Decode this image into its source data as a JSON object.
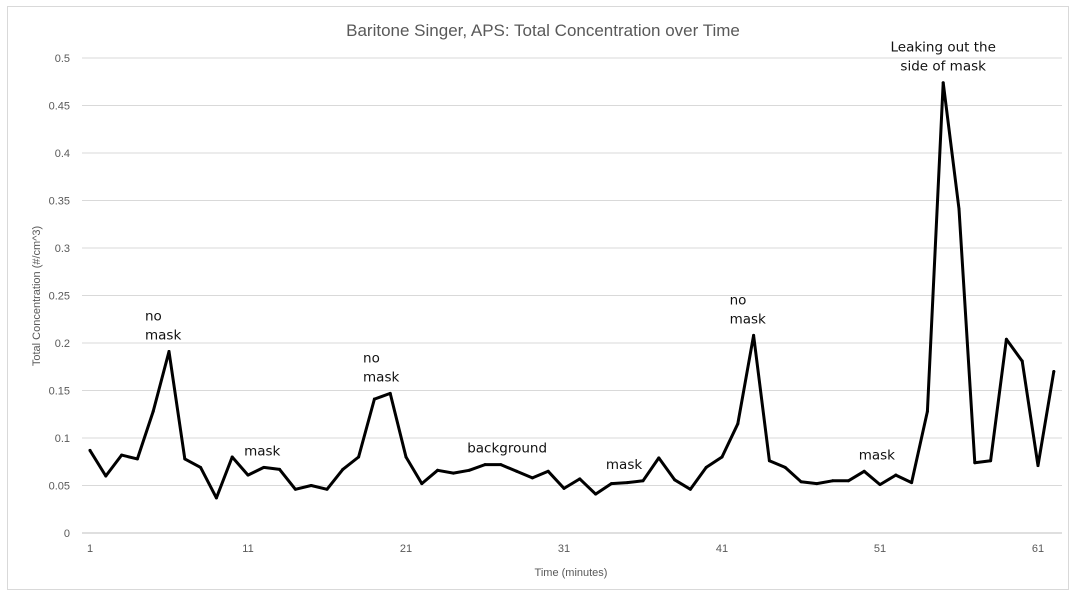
{
  "chart_data": {
    "type": "line",
    "title": "Baritone Singer, APS: Total Concentration over Time",
    "xlabel": "Time (minutes)",
    "ylabel": "Total Concentration (#/cm^3)",
    "xlim": [
      1,
      62
    ],
    "ylim": [
      0,
      0.5
    ],
    "y_ticks": [
      "0",
      "0.05",
      "0.1",
      "0.15",
      "0.2",
      "0.25",
      "0.3",
      "0.35",
      "0.4",
      "0.45",
      "0.5"
    ],
    "x_ticks": [
      "1",
      "11",
      "21",
      "31",
      "41",
      "51",
      "61"
    ],
    "grid": true,
    "legend": "none",
    "series": [
      {
        "color": "#000000",
        "x": [
          1,
          2,
          3,
          4,
          5,
          6,
          7,
          8,
          9,
          10,
          11,
          12,
          13,
          14,
          15,
          16,
          17,
          18,
          19,
          20,
          21,
          22,
          23,
          24,
          25,
          26,
          27,
          28,
          29,
          30,
          31,
          32,
          33,
          34,
          35,
          36,
          37,
          38,
          39,
          40,
          41,
          42,
          43,
          44,
          45,
          46,
          47,
          48,
          49,
          50,
          51,
          52,
          53,
          54,
          55,
          56,
          57,
          58,
          59,
          60,
          61,
          62
        ],
        "values": [
          0.087,
          0.06,
          0.082,
          0.078,
          0.128,
          0.191,
          0.078,
          0.069,
          0.037,
          0.08,
          0.061,
          0.069,
          0.067,
          0.046,
          0.05,
          0.046,
          0.067,
          0.08,
          0.141,
          0.147,
          0.08,
          0.052,
          0.066,
          0.063,
          0.066,
          0.072,
          0.072,
          0.065,
          0.058,
          0.065,
          0.047,
          0.057,
          0.041,
          0.052,
          0.053,
          0.055,
          0.079,
          0.056,
          0.046,
          0.069,
          0.08,
          0.115,
          0.208,
          0.076,
          0.069,
          0.054,
          0.052,
          0.055,
          0.055,
          0.065,
          0.051,
          0.061,
          0.053,
          0.128,
          0.474,
          0.341,
          0.074,
          0.076,
          0.204,
          0.181,
          0.071,
          0.17
        ]
      }
    ],
    "annotations": [
      {
        "x": 6,
        "y": 0.191,
        "lines": [
          "no",
          "mask"
        ]
      },
      {
        "x": 11.9,
        "y": 0.069,
        "lines": [
          "mask"
        ]
      },
      {
        "x": 19.8,
        "y": 0.147,
        "lines": [
          "no",
          "mask"
        ]
      },
      {
        "x": 27.4,
        "y": 0.072,
        "lines": [
          "background"
        ]
      },
      {
        "x": 34.8,
        "y": 0.055,
        "lines": [
          "mask"
        ]
      },
      {
        "x": 43,
        "y": 0.208,
        "lines": [
          "no",
          "mask"
        ]
      },
      {
        "x": 50.8,
        "y": 0.065,
        "lines": [
          "mask"
        ]
      },
      {
        "x": 55,
        "y": 0.474,
        "lines": [
          "Leaking out the",
          "side of mask"
        ]
      }
    ]
  }
}
